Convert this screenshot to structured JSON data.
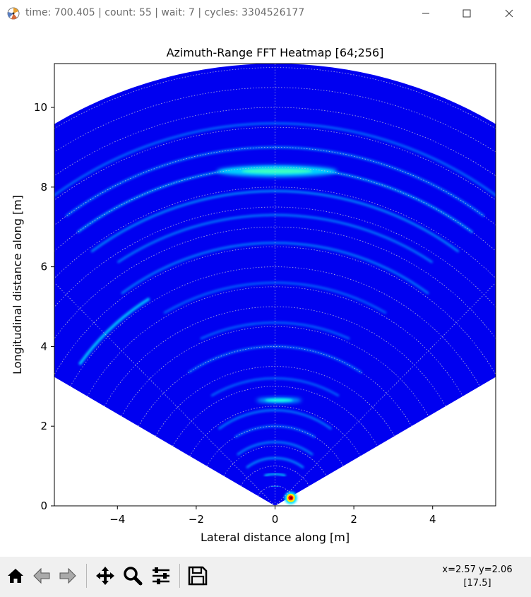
{
  "window": {
    "title": "time: 700.405 | count: 55 | wait: 7 | cycles: 3304526177",
    "icon": "matplotlib-logo-icon"
  },
  "toolbar": {
    "buttons": [
      {
        "name": "home",
        "icon": "home-icon"
      },
      {
        "name": "back",
        "icon": "arrow-left-icon"
      },
      {
        "name": "forward",
        "icon": "arrow-right-icon"
      },
      {
        "name": "pan",
        "icon": "move-icon"
      },
      {
        "name": "zoom",
        "icon": "magnifier-icon"
      },
      {
        "name": "subplots",
        "icon": "sliders-icon"
      },
      {
        "name": "save",
        "icon": "floppy-disk-icon"
      }
    ],
    "coords_line1": "x=2.57 y=2.06",
    "coords_line2": "[17.5]"
  },
  "chart_data": {
    "type": "heatmap",
    "title": "Azimuth-Range FFT Heatmap [64;256]",
    "xlabel": "Lateral distance along [m]",
    "ylabel": "Longitudinal distance along [m]",
    "xlim": [
      -5.6,
      5.6
    ],
    "ylim": [
      0,
      11.1
    ],
    "xticks": [
      -4,
      -2,
      0,
      2,
      4
    ],
    "yticks": [
      0,
      2,
      4,
      6,
      8,
      10
    ],
    "grid": true,
    "colormap": "jet",
    "field_of_view_deg": [
      -60,
      60
    ],
    "max_range": 11.1,
    "range_rings": [
      0.5,
      1.0,
      1.5,
      2.0,
      2.5,
      3.0,
      3.5,
      4.0,
      4.5,
      5.0,
      5.5,
      6.0,
      6.5,
      7.0,
      7.5,
      8.0,
      8.5,
      9.0,
      9.5,
      10.0,
      10.5,
      11.0
    ],
    "azimuth_spokes_deg": [
      -45,
      0,
      45
    ],
    "hotspots": [
      {
        "x": 0.4,
        "y": 0.2,
        "intensity": 1.0
      },
      {
        "x": 0.05,
        "y": 8.4,
        "intensity": 0.6
      },
      {
        "x": 0.1,
        "y": 2.65,
        "intensity": 0.55
      }
    ]
  }
}
